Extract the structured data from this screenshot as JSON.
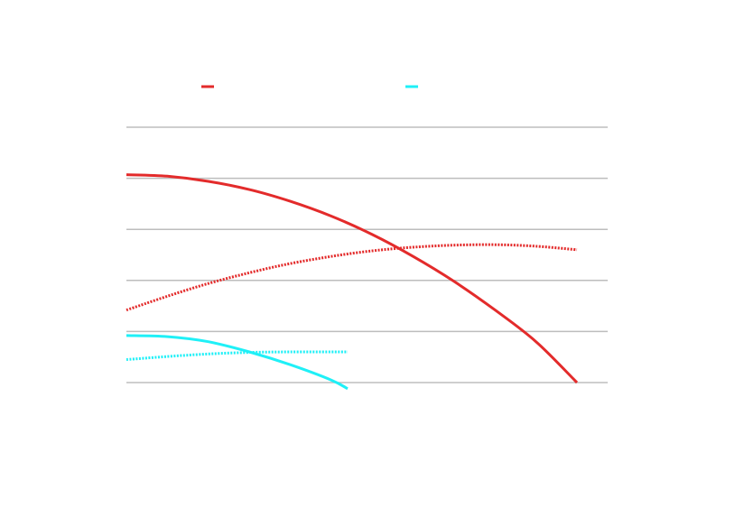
{
  "chart_data": {
    "type": "line",
    "title": "",
    "xlabel": "",
    "ylabel": "",
    "grid": true,
    "legend_position": "top",
    "y_gridlines": [
      0,
      1,
      2,
      3,
      4,
      5
    ],
    "legend": [
      {
        "color": "#e32b2b",
        "label": ""
      },
      {
        "color": "#1ff0f7",
        "label": ""
      }
    ],
    "series": [
      {
        "color": "#e32b2b",
        "style": "solid",
        "points": [
          [
            0,
            4.07
          ],
          [
            0.5,
            4.04
          ],
          [
            1,
            3.94
          ],
          [
            1.5,
            3.78
          ],
          [
            2,
            3.55
          ],
          [
            2.5,
            3.26
          ],
          [
            3,
            2.9
          ],
          [
            3.5,
            2.47
          ],
          [
            4,
            1.98
          ],
          [
            4.5,
            1.42
          ],
          [
            5,
            0.8
          ],
          [
            5.5,
            0.0
          ]
        ]
      },
      {
        "color": "#e32b2b",
        "style": "dotted",
        "points": [
          [
            0,
            1.42
          ],
          [
            0.5,
            1.69
          ],
          [
            1,
            1.94
          ],
          [
            1.5,
            2.15
          ],
          [
            2,
            2.33
          ],
          [
            2.5,
            2.47
          ],
          [
            3,
            2.58
          ],
          [
            3.5,
            2.65
          ],
          [
            4,
            2.69
          ],
          [
            4.5,
            2.7
          ],
          [
            5,
            2.67
          ],
          [
            5.5,
            2.6
          ]
        ]
      },
      {
        "color": "#1ff0f7",
        "style": "solid",
        "points": [
          [
            0,
            0.92
          ],
          [
            0.5,
            0.9
          ],
          [
            1,
            0.8
          ],
          [
            1.5,
            0.6
          ],
          [
            2,
            0.35
          ],
          [
            2.5,
            0.05
          ],
          [
            2.7,
            -0.12
          ]
        ]
      },
      {
        "color": "#1ff0f7",
        "style": "dotted",
        "points": [
          [
            0,
            0.45
          ],
          [
            0.5,
            0.51
          ],
          [
            1,
            0.56
          ],
          [
            1.5,
            0.59
          ],
          [
            2,
            0.6
          ],
          [
            2.5,
            0.6
          ],
          [
            2.7,
            0.6
          ]
        ]
      }
    ]
  }
}
